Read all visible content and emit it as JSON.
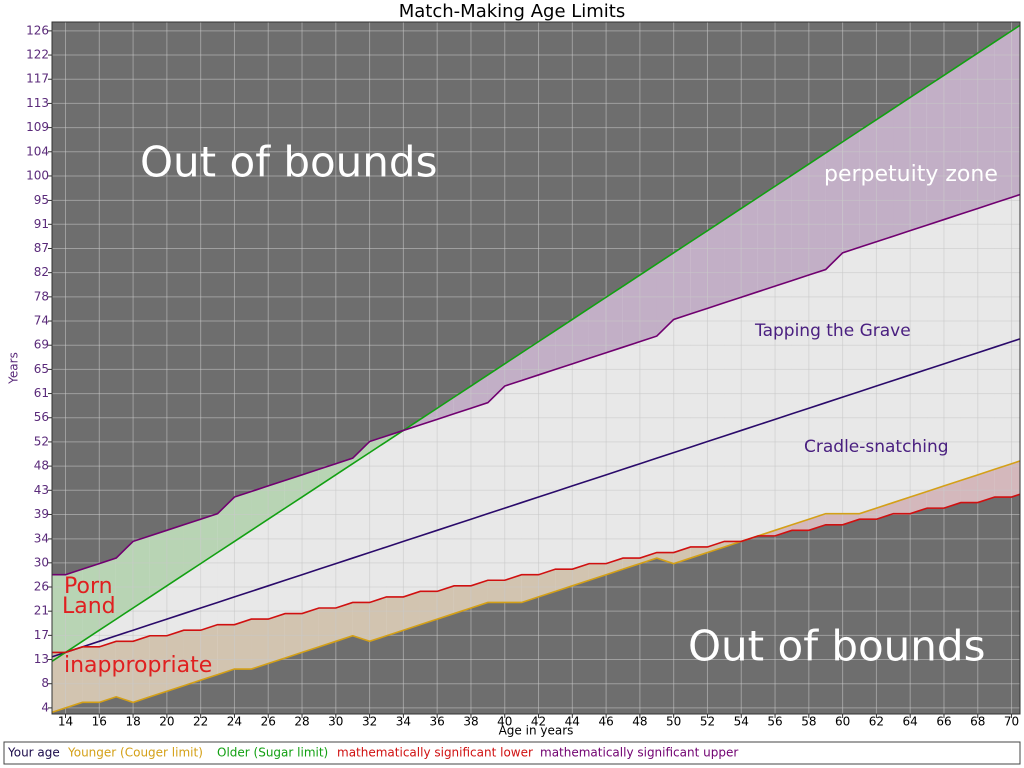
{
  "chart_data": {
    "type": "line",
    "title": "Match-Making Age Limits",
    "xlabel": "Age in years",
    "ylabel": "Years",
    "x": [
      13,
      14,
      15,
      16,
      17,
      18,
      19,
      20,
      21,
      22,
      23,
      24,
      25,
      26,
      27,
      28,
      29,
      30,
      31,
      32,
      33,
      34,
      35,
      36,
      37,
      38,
      39,
      40,
      41,
      42,
      43,
      44,
      45,
      46,
      47,
      48,
      49,
      50,
      51,
      52,
      53,
      54,
      55,
      56,
      57,
      58,
      59,
      60,
      61,
      62,
      63,
      64,
      65,
      66,
      67,
      68,
      69,
      70,
      71
    ],
    "series": [
      {
        "name": "Your age",
        "color": "#2a0a6a",
        "values": [
          13,
          14,
          15,
          16,
          17,
          18,
          19,
          20,
          21,
          22,
          23,
          24,
          25,
          26,
          27,
          28,
          29,
          30,
          31,
          32,
          33,
          34,
          35,
          36,
          37,
          38,
          39,
          40,
          41,
          42,
          43,
          44,
          45,
          46,
          47,
          48,
          49,
          50,
          51,
          52,
          53,
          54,
          55,
          56,
          57,
          58,
          59,
          60,
          61,
          62,
          63,
          64,
          65,
          66,
          67,
          68,
          69,
          70,
          71
        ]
      },
      {
        "name": "Younger (Couger limit)",
        "color": "#d4a017",
        "values": [
          3,
          4,
          5,
          5,
          6,
          5,
          6,
          7,
          8,
          9,
          10,
          11,
          11,
          12,
          13,
          14,
          15,
          16,
          17,
          16,
          17,
          18,
          19,
          20,
          21,
          22,
          23,
          23,
          23,
          24,
          25,
          26,
          27,
          28,
          29,
          30,
          31,
          30,
          31,
          32,
          33,
          34,
          35,
          36,
          37,
          38,
          39,
          39,
          39,
          40,
          41,
          42,
          43,
          44,
          45,
          46,
          47,
          48,
          49
        ]
      },
      {
        "name": "Older (Sugar limit)",
        "color": "#12a012",
        "values": [
          12,
          14,
          16,
          18,
          20,
          22,
          24,
          26,
          28,
          30,
          32,
          34,
          36,
          38,
          40,
          42,
          44,
          46,
          48,
          50,
          52,
          54,
          56,
          58,
          60,
          62,
          64,
          66,
          68,
          70,
          72,
          74,
          76,
          78,
          80,
          82,
          84,
          86,
          88,
          90,
          92,
          94,
          96,
          98,
          100,
          102,
          104,
          106,
          108,
          110,
          112,
          114,
          116,
          118,
          120,
          122,
          124,
          126,
          128
        ]
      },
      {
        "name": "mathematically significant lower",
        "color": "#d01010",
        "values": [
          14,
          14,
          15,
          15,
          16,
          16,
          17,
          17,
          18,
          18,
          19,
          19,
          20,
          20,
          21,
          21,
          22,
          22,
          23,
          23,
          24,
          24,
          25,
          25,
          26,
          26,
          27,
          27,
          28,
          28,
          29,
          29,
          30,
          30,
          31,
          31,
          32,
          32,
          33,
          33,
          34,
          34,
          35,
          35,
          36,
          36,
          37,
          37,
          38,
          38,
          39,
          39,
          40,
          40,
          41,
          41,
          42,
          42,
          43
        ]
      },
      {
        "name": "mathematically significant upper",
        "color": "#700070",
        "values": [
          28,
          28,
          29,
          30,
          31,
          34,
          35,
          36,
          37,
          38,
          39,
          42,
          43,
          44,
          45,
          46,
          47,
          48,
          49,
          52,
          53,
          54,
          55,
          56,
          57,
          58,
          59,
          62,
          63,
          64,
          65,
          66,
          67,
          68,
          69,
          70,
          71,
          74,
          75,
          76,
          77,
          78,
          79,
          80,
          81,
          82,
          83,
          86,
          87,
          88,
          89,
          90,
          91,
          92,
          93,
          94,
          95,
          96,
          97
        ]
      }
    ],
    "xlim": [
      13.2,
      70.5
    ],
    "ylim": [
      2.9,
      127.6
    ],
    "xticks": [
      14,
      16,
      18,
      20,
      22,
      24,
      26,
      28,
      30,
      32,
      34,
      36,
      38,
      40,
      42,
      44,
      46,
      48,
      50,
      52,
      54,
      56,
      58,
      60,
      62,
      64,
      66,
      68,
      70
    ],
    "yticks": [
      4,
      {
        "value": 8.357,
        "label": "8"
      },
      {
        "value": 12.714,
        "label": "13"
      },
      {
        "value": 17.071,
        "label": "17"
      },
      {
        "value": 21.429,
        "label": "21"
      },
      {
        "value": 25.786,
        "label": "26"
      },
      {
        "value": 30.143,
        "label": "30"
      },
      {
        "value": 34.45,
        "label": "34"
      },
      {
        "value": 38.857,
        "label": "39"
      },
      {
        "value": 43.214,
        "label": "43"
      },
      {
        "value": 47.571,
        "label": "48"
      },
      {
        "value": 51.929,
        "label": "52"
      },
      {
        "value": 56.286,
        "label": "56"
      },
      {
        "value": 60.643,
        "label": "61"
      },
      65,
      {
        "value": 69.357,
        "label": "69"
      },
      {
        "value": 73.714,
        "label": "74"
      },
      {
        "value": 78.071,
        "label": "78"
      },
      {
        "value": 82.429,
        "label": "82"
      },
      {
        "value": 86.786,
        "label": "87"
      },
      {
        "value": 91.143,
        "label": "91"
      },
      {
        "value": 95.45,
        "label": "95"
      },
      {
        "value": 99.857,
        "label": "100"
      },
      {
        "value": 104.214,
        "label": "104"
      },
      {
        "value": 108.571,
        "label": "109"
      },
      {
        "value": 112.929,
        "label": "113"
      },
      {
        "value": 117.286,
        "label": "117"
      },
      {
        "value": 121.643,
        "label": "122"
      },
      126
    ],
    "grid": true,
    "annotations": [
      "Out of bounds",
      "perpetuity zone",
      "Tapping the Grave",
      "Cradle-snatching",
      "Porn",
      "Land",
      "inappropriate",
      "Out of bounds"
    ]
  }
}
